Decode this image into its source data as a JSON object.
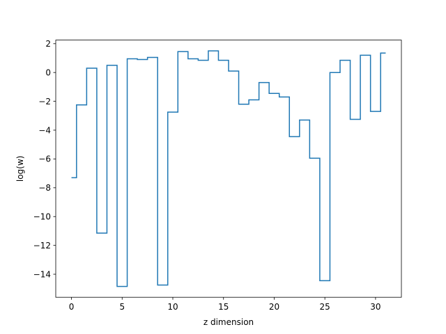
{
  "chart_data": {
    "type": "line",
    "drawstyle": "steps-mid",
    "title": "",
    "xlabel": "z dimension",
    "ylabel": "log(w)",
    "xlim": [
      -1.55,
      32.55
    ],
    "ylim": [
      -15.6,
      2.25
    ],
    "xticks": [
      0,
      5,
      10,
      15,
      20,
      25,
      30
    ],
    "xtick_labels": [
      "0",
      "5",
      "10",
      "15",
      "20",
      "25",
      "30"
    ],
    "yticks": [
      2,
      0,
      -2,
      -4,
      -6,
      -8,
      -10,
      -12,
      -14
    ],
    "ytick_labels": [
      "2",
      "0",
      "−2",
      "−4",
      "−6",
      "−8",
      "−10",
      "−12",
      "−14"
    ],
    "grid": false,
    "legend": "none",
    "series": [
      {
        "color": "#1f77b4",
        "x": [
          0,
          1,
          2,
          3,
          4,
          5,
          6,
          7,
          8,
          9,
          10,
          11,
          12,
          13,
          14,
          15,
          16,
          17,
          18,
          19,
          20,
          21,
          22,
          23,
          24,
          25,
          26,
          27,
          28,
          29,
          30,
          31
        ],
        "y": [
          -7.3,
          -2.25,
          0.3,
          -11.15,
          0.5,
          -14.85,
          0.95,
          0.9,
          1.05,
          -14.75,
          -2.75,
          1.45,
          0.95,
          0.85,
          1.5,
          0.85,
          0.1,
          -2.2,
          -1.9,
          -0.7,
          -1.45,
          -1.7,
          -4.45,
          -3.3,
          -5.95,
          -14.45,
          0.0,
          0.85,
          -3.25,
          1.2,
          -2.7,
          1.35
        ]
      }
    ]
  }
}
